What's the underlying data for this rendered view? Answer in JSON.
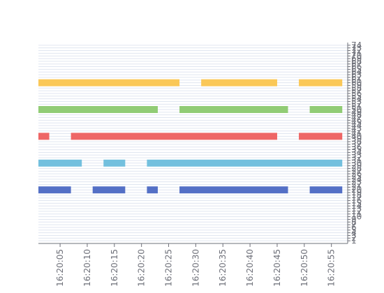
{
  "chart_data": {
    "type": "bar",
    "subtype": "horizontal-timeline",
    "title": "",
    "xlabel": "",
    "ylabel": "",
    "x_axis": {
      "kind": "time",
      "range": [
        "16:20:01",
        "16:20:58"
      ],
      "ticks": [
        "16:20:05",
        "16:20:10",
        "16:20:15",
        "16:20:20",
        "16:20:25",
        "16:20:30",
        "16:20:35",
        "16:20:40",
        "16:20:45",
        "16:20:50",
        "16:20:55"
      ]
    },
    "y_axis": {
      "position": "right",
      "range": [
        0,
        75
      ],
      "ticks": [
        "1",
        "2",
        "3",
        "4",
        "5",
        "6",
        "7",
        "8",
        "9",
        "10",
        "11",
        "12",
        "13",
        "14",
        "15",
        "16",
        "17",
        "18",
        "19",
        "20",
        "21",
        "22",
        "23",
        "24",
        "25",
        "26",
        "27",
        "28",
        "29",
        "30",
        "31",
        "32",
        "33",
        "34",
        "35",
        "36",
        "37",
        "38",
        "39",
        "40",
        "41",
        "42",
        "43",
        "44",
        "45",
        "46",
        "47",
        "48",
        "49",
        "50",
        "51",
        "52",
        "53",
        "54",
        "55",
        "56",
        "57",
        "58",
        "59",
        "60",
        "61",
        "62",
        "63",
        "64",
        "65",
        "66",
        "67",
        "68",
        "69",
        "70",
        "71",
        "72",
        "73",
        "74"
      ]
    },
    "grid": true,
    "legend": "none",
    "series": [
      {
        "color": "#5470c6",
        "y": 20,
        "segments": [
          [
            "16:20:01",
            "16:20:07"
          ],
          [
            "16:20:11",
            "16:20:17"
          ],
          [
            "16:20:21",
            "16:20:23"
          ],
          [
            "16:20:27",
            "16:20:47"
          ],
          [
            "16:20:51",
            "16:20:57"
          ]
        ]
      },
      {
        "color": "#73c0de",
        "y": 30,
        "segments": [
          [
            "16:20:01",
            "16:20:09"
          ],
          [
            "16:20:13",
            "16:20:17"
          ],
          [
            "16:20:21",
            "16:20:57"
          ]
        ]
      },
      {
        "color": "#ee6666",
        "y": 40,
        "segments": [
          [
            "16:20:01",
            "16:20:03"
          ],
          [
            "16:20:07",
            "16:20:45"
          ],
          [
            "16:20:49",
            "16:20:57"
          ]
        ]
      },
      {
        "color": "#91cc75",
        "y": 50,
        "segments": [
          [
            "16:20:01",
            "16:20:23"
          ],
          [
            "16:20:27",
            "16:20:47"
          ],
          [
            "16:20:51",
            "16:20:57"
          ]
        ]
      },
      {
        "color": "#fac858",
        "y": 60,
        "segments": [
          [
            "16:20:01",
            "16:20:27"
          ],
          [
            "16:20:31",
            "16:20:45"
          ],
          [
            "16:20:49",
            "16:20:57"
          ]
        ]
      }
    ]
  }
}
